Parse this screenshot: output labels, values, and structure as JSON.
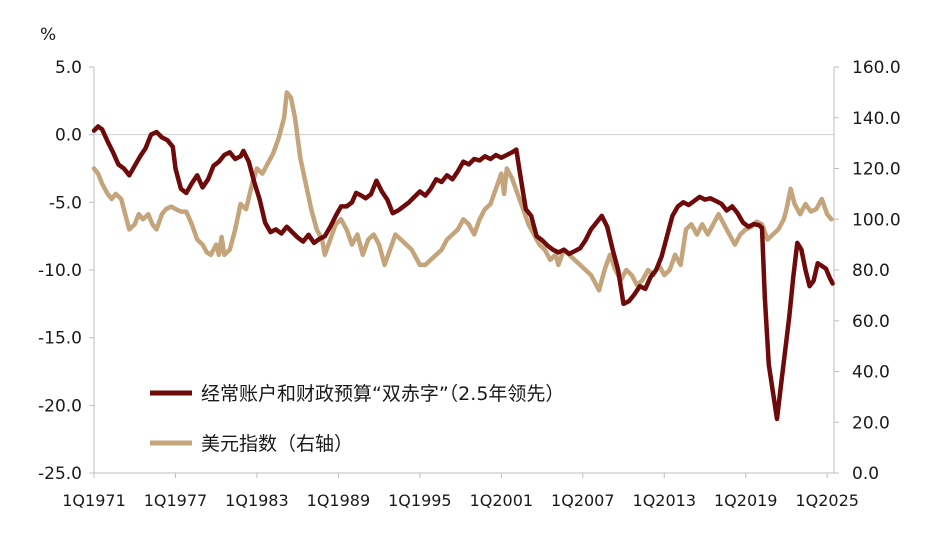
{
  "chart_data": {
    "type": "line",
    "left_axis_unit": "%",
    "left_axis": {
      "min": -25,
      "max": 5,
      "step": 5,
      "tick_labels": [
        "5.0",
        "0.0",
        "-5.0",
        "-10.0",
        "-15.0",
        "-20.0",
        "-25.0"
      ]
    },
    "right_axis": {
      "min": 0,
      "max": 160,
      "step": 20,
      "tick_labels": [
        "160.0",
        "140.0",
        "120.0",
        "100.0",
        "80.0",
        "60.0",
        "40.0",
        "20.0",
        "0.0"
      ]
    },
    "x_range": [
      1971.0,
      2025.5
    ],
    "x_tick_labels": [
      "1Q1971",
      "1Q1977",
      "1Q1983",
      "1Q1989",
      "1Q1995",
      "1Q2001",
      "1Q2007",
      "1Q2013",
      "1Q2019",
      "1Q2025"
    ],
    "x_tick_years": [
      1971,
      1977,
      1983,
      1989,
      1995,
      2001,
      2007,
      2013,
      2019,
      2025
    ],
    "legend_position": "bottom-left",
    "series": [
      {
        "name": "经常账户和财政预算“双赤字”（2.5年领先）",
        "axis": "left",
        "color": "#6e0a0a",
        "points": [
          [
            1971.0,
            0.3
          ],
          [
            1971.3,
            0.6
          ],
          [
            1971.6,
            0.4
          ],
          [
            1972.0,
            -0.5
          ],
          [
            1972.4,
            -1.3
          ],
          [
            1972.8,
            -2.2
          ],
          [
            1973.2,
            -2.5
          ],
          [
            1973.6,
            -3.0
          ],
          [
            1974.0,
            -2.3
          ],
          [
            1974.4,
            -1.6
          ],
          [
            1974.8,
            -1.0
          ],
          [
            1975.2,
            0.0
          ],
          [
            1975.6,
            0.2
          ],
          [
            1976.0,
            -0.2
          ],
          [
            1976.4,
            -0.4
          ],
          [
            1976.8,
            -0.9
          ],
          [
            1977.0,
            -2.5
          ],
          [
            1977.4,
            -4.0
          ],
          [
            1977.8,
            -4.3
          ],
          [
            1978.2,
            -3.6
          ],
          [
            1978.6,
            -3.0
          ],
          [
            1979.0,
            -3.9
          ],
          [
            1979.4,
            -3.3
          ],
          [
            1979.8,
            -2.3
          ],
          [
            1980.2,
            -2.0
          ],
          [
            1980.6,
            -1.5
          ],
          [
            1981.0,
            -1.3
          ],
          [
            1981.4,
            -1.8
          ],
          [
            1981.8,
            -1.6
          ],
          [
            1982.0,
            -1.2
          ],
          [
            1982.4,
            -2.0
          ],
          [
            1982.8,
            -3.5
          ],
          [
            1983.2,
            -4.8
          ],
          [
            1983.6,
            -6.5
          ],
          [
            1984.0,
            -7.2
          ],
          [
            1984.4,
            -7.0
          ],
          [
            1984.8,
            -7.3
          ],
          [
            1985.2,
            -6.8
          ],
          [
            1985.6,
            -7.2
          ],
          [
            1986.0,
            -7.6
          ],
          [
            1986.4,
            -7.9
          ],
          [
            1986.8,
            -7.4
          ],
          [
            1987.2,
            -8.0
          ],
          [
            1987.6,
            -7.7
          ],
          [
            1988.0,
            -7.5
          ],
          [
            1988.4,
            -6.8
          ],
          [
            1988.8,
            -6.0
          ],
          [
            1989.2,
            -5.3
          ],
          [
            1989.6,
            -5.3
          ],
          [
            1990.0,
            -5.0
          ],
          [
            1990.3,
            -4.3
          ],
          [
            1990.7,
            -4.5
          ],
          [
            1991.0,
            -4.7
          ],
          [
            1991.4,
            -4.4
          ],
          [
            1991.8,
            -3.4
          ],
          [
            1992.2,
            -4.2
          ],
          [
            1992.6,
            -4.8
          ],
          [
            1993.0,
            -5.8
          ],
          [
            1993.4,
            -5.6
          ],
          [
            1993.8,
            -5.3
          ],
          [
            1994.2,
            -5.0
          ],
          [
            1994.6,
            -4.6
          ],
          [
            1995.0,
            -4.2
          ],
          [
            1995.4,
            -4.5
          ],
          [
            1995.8,
            -4.0
          ],
          [
            1996.2,
            -3.3
          ],
          [
            1996.6,
            -3.5
          ],
          [
            1997.0,
            -3.0
          ],
          [
            1997.4,
            -3.3
          ],
          [
            1997.8,
            -2.7
          ],
          [
            1998.2,
            -2.0
          ],
          [
            1998.6,
            -2.2
          ],
          [
            1999.0,
            -1.8
          ],
          [
            1999.4,
            -1.9
          ],
          [
            1999.8,
            -1.6
          ],
          [
            2000.2,
            -1.8
          ],
          [
            2000.6,
            -1.5
          ],
          [
            2001.0,
            -1.7
          ],
          [
            2001.4,
            -1.5
          ],
          [
            2001.8,
            -1.3
          ],
          [
            2002.1,
            -1.1
          ],
          [
            2002.4,
            -3.0
          ],
          [
            2002.8,
            -5.5
          ],
          [
            2003.2,
            -6.0
          ],
          [
            2003.6,
            -7.5
          ],
          [
            2004.0,
            -7.8
          ],
          [
            2004.4,
            -8.2
          ],
          [
            2004.8,
            -8.5
          ],
          [
            2005.2,
            -8.7
          ],
          [
            2005.6,
            -8.5
          ],
          [
            2006.0,
            -8.8
          ],
          [
            2006.4,
            -8.6
          ],
          [
            2006.8,
            -8.4
          ],
          [
            2007.2,
            -7.8
          ],
          [
            2007.6,
            -7.0
          ],
          [
            2008.0,
            -6.5
          ],
          [
            2008.4,
            -6.0
          ],
          [
            2008.8,
            -6.8
          ],
          [
            2009.2,
            -8.5
          ],
          [
            2009.6,
            -10.0
          ],
          [
            2010.0,
            -12.5
          ],
          [
            2010.4,
            -12.3
          ],
          [
            2010.8,
            -11.8
          ],
          [
            2011.2,
            -11.2
          ],
          [
            2011.6,
            -11.4
          ],
          [
            2012.0,
            -10.5
          ],
          [
            2012.4,
            -10.0
          ],
          [
            2012.8,
            -9.0
          ],
          [
            2013.2,
            -7.5
          ],
          [
            2013.6,
            -6.0
          ],
          [
            2014.0,
            -5.3
          ],
          [
            2014.4,
            -5.0
          ],
          [
            2014.8,
            -5.2
          ],
          [
            2015.2,
            -4.9
          ],
          [
            2015.6,
            -4.6
          ],
          [
            2016.0,
            -4.8
          ],
          [
            2016.4,
            -4.7
          ],
          [
            2016.8,
            -4.9
          ],
          [
            2017.2,
            -5.1
          ],
          [
            2017.6,
            -5.6
          ],
          [
            2018.0,
            -5.3
          ],
          [
            2018.4,
            -5.8
          ],
          [
            2018.8,
            -6.5
          ],
          [
            2019.2,
            -6.8
          ],
          [
            2019.6,
            -6.6
          ],
          [
            2020.0,
            -6.7
          ],
          [
            2020.2,
            -6.9
          ],
          [
            2020.4,
            -12.0
          ],
          [
            2020.7,
            -17.0
          ],
          [
            2021.0,
            -19.0
          ],
          [
            2021.3,
            -21.0
          ],
          [
            2021.6,
            -18.5
          ],
          [
            2021.9,
            -16.0
          ],
          [
            2022.2,
            -13.5
          ],
          [
            2022.5,
            -10.5
          ],
          [
            2022.8,
            -8.0
          ],
          [
            2023.1,
            -8.5
          ],
          [
            2023.4,
            -10.0
          ],
          [
            2023.7,
            -11.2
          ],
          [
            2024.0,
            -10.8
          ],
          [
            2024.3,
            -9.5
          ],
          [
            2024.6,
            -9.7
          ],
          [
            2024.9,
            -9.9
          ],
          [
            2025.2,
            -10.6
          ],
          [
            2025.4,
            -11.0
          ]
        ]
      },
      {
        "name": "美元指数（右轴）",
        "axis": "right",
        "color": "#c4a47a",
        "points": [
          [
            1971.0,
            120.0
          ],
          [
            1971.3,
            118.0
          ],
          [
            1971.6,
            114.0
          ],
          [
            1972.0,
            110.0
          ],
          [
            1972.3,
            108.0
          ],
          [
            1972.6,
            110.0
          ],
          [
            1973.0,
            108.0
          ],
          [
            1973.3,
            102.0
          ],
          [
            1973.6,
            96.0
          ],
          [
            1974.0,
            98.0
          ],
          [
            1974.3,
            102.0
          ],
          [
            1974.6,
            100.0
          ],
          [
            1975.0,
            102.0
          ],
          [
            1975.3,
            98.0
          ],
          [
            1975.6,
            96.0
          ],
          [
            1976.0,
            102.0
          ],
          [
            1976.3,
            104.0
          ],
          [
            1976.7,
            105.0
          ],
          [
            1977.0,
            104.0
          ],
          [
            1977.4,
            103.0
          ],
          [
            1977.8,
            103.0
          ],
          [
            1978.2,
            98.0
          ],
          [
            1978.6,
            92.0
          ],
          [
            1979.0,
            90.0
          ],
          [
            1979.3,
            87.0
          ],
          [
            1979.6,
            86.0
          ],
          [
            1980.0,
            90.0
          ],
          [
            1980.2,
            86.0
          ],
          [
            1980.4,
            93.0
          ],
          [
            1980.6,
            86.0
          ],
          [
            1981.0,
            88.0
          ],
          [
            1981.4,
            96.0
          ],
          [
            1981.8,
            106.0
          ],
          [
            1982.2,
            104.0
          ],
          [
            1982.6,
            113.0
          ],
          [
            1983.0,
            120.0
          ],
          [
            1983.4,
            118.0
          ],
          [
            1983.8,
            122.0
          ],
          [
            1984.2,
            126.0
          ],
          [
            1984.6,
            132.0
          ],
          [
            1985.0,
            140.0
          ],
          [
            1985.2,
            150.0
          ],
          [
            1985.5,
            148.0
          ],
          [
            1985.8,
            140.0
          ],
          [
            1986.2,
            124.0
          ],
          [
            1986.6,
            114.0
          ],
          [
            1987.0,
            104.0
          ],
          [
            1987.4,
            96.0
          ],
          [
            1987.8,
            92.0
          ],
          [
            1988.0,
            86.0
          ],
          [
            1988.4,
            92.0
          ],
          [
            1988.8,
            98.0
          ],
          [
            1989.2,
            100.0
          ],
          [
            1989.6,
            96.0
          ],
          [
            1990.0,
            90.0
          ],
          [
            1990.4,
            94.0
          ],
          [
            1990.8,
            86.0
          ],
          [
            1991.2,
            92.0
          ],
          [
            1991.6,
            94.0
          ],
          [
            1992.0,
            90.0
          ],
          [
            1992.4,
            82.0
          ],
          [
            1992.8,
            88.0
          ],
          [
            1993.2,
            94.0
          ],
          [
            1993.6,
            92.0
          ],
          [
            1994.0,
            90.0
          ],
          [
            1994.4,
            88.0
          ],
          [
            1995.0,
            82.0
          ],
          [
            1995.4,
            82.0
          ],
          [
            1995.8,
            84.0
          ],
          [
            1996.2,
            86.0
          ],
          [
            1996.6,
            88.0
          ],
          [
            1997.0,
            92.0
          ],
          [
            1997.4,
            94.0
          ],
          [
            1997.8,
            96.0
          ],
          [
            1998.2,
            100.0
          ],
          [
            1998.6,
            98.0
          ],
          [
            1999.0,
            94.0
          ],
          [
            1999.4,
            100.0
          ],
          [
            1999.8,
            104.0
          ],
          [
            2000.2,
            106.0
          ],
          [
            2000.6,
            112.0
          ],
          [
            2001.0,
            118.0
          ],
          [
            2001.2,
            110.0
          ],
          [
            2001.4,
            120.0
          ],
          [
            2001.8,
            116.0
          ],
          [
            2002.2,
            110.0
          ],
          [
            2002.6,
            104.0
          ],
          [
            2003.0,
            98.0
          ],
          [
            2003.4,
            94.0
          ],
          [
            2003.8,
            90.0
          ],
          [
            2004.2,
            88.0
          ],
          [
            2004.6,
            84.0
          ],
          [
            2005.0,
            86.0
          ],
          [
            2005.2,
            82.0
          ],
          [
            2005.6,
            88.0
          ],
          [
            2006.0,
            86.0
          ],
          [
            2006.4,
            84.0
          ],
          [
            2006.8,
            82.0
          ],
          [
            2007.2,
            80.0
          ],
          [
            2007.6,
            78.0
          ],
          [
            2008.0,
            74.0
          ],
          [
            2008.2,
            72.0
          ],
          [
            2008.6,
            80.0
          ],
          [
            2009.0,
            86.0
          ],
          [
            2009.4,
            80.0
          ],
          [
            2009.8,
            76.0
          ],
          [
            2010.2,
            80.0
          ],
          [
            2010.6,
            78.0
          ],
          [
            2011.0,
            74.0
          ],
          [
            2011.4,
            76.0
          ],
          [
            2011.8,
            80.0
          ],
          [
            2012.2,
            78.0
          ],
          [
            2012.6,
            82.0
          ],
          [
            2013.0,
            78.0
          ],
          [
            2013.4,
            80.0
          ],
          [
            2013.8,
            86.0
          ],
          [
            2014.2,
            82.0
          ],
          [
            2014.6,
            96.0
          ],
          [
            2015.0,
            98.0
          ],
          [
            2015.4,
            94.0
          ],
          [
            2015.8,
            98.0
          ],
          [
            2016.2,
            94.0
          ],
          [
            2016.6,
            98.0
          ],
          [
            2017.0,
            102.0
          ],
          [
            2017.4,
            98.0
          ],
          [
            2017.8,
            94.0
          ],
          [
            2018.2,
            90.0
          ],
          [
            2018.6,
            94.0
          ],
          [
            2019.0,
            96.0
          ],
          [
            2019.4,
            97.0
          ],
          [
            2019.8,
            99.0
          ],
          [
            2020.2,
            98.0
          ],
          [
            2020.6,
            92.0
          ],
          [
            2021.0,
            94.0
          ],
          [
            2021.4,
            96.0
          ],
          [
            2021.8,
            100.0
          ],
          [
            2022.0,
            104.0
          ],
          [
            2022.3,
            112.0
          ],
          [
            2022.6,
            106.0
          ],
          [
            2023.0,
            102.0
          ],
          [
            2023.4,
            106.0
          ],
          [
            2023.8,
            103.0
          ],
          [
            2024.2,
            104.0
          ],
          [
            2024.6,
            108.0
          ],
          [
            2025.0,
            102.0
          ],
          [
            2025.3,
            100.0
          ]
        ]
      }
    ]
  }
}
